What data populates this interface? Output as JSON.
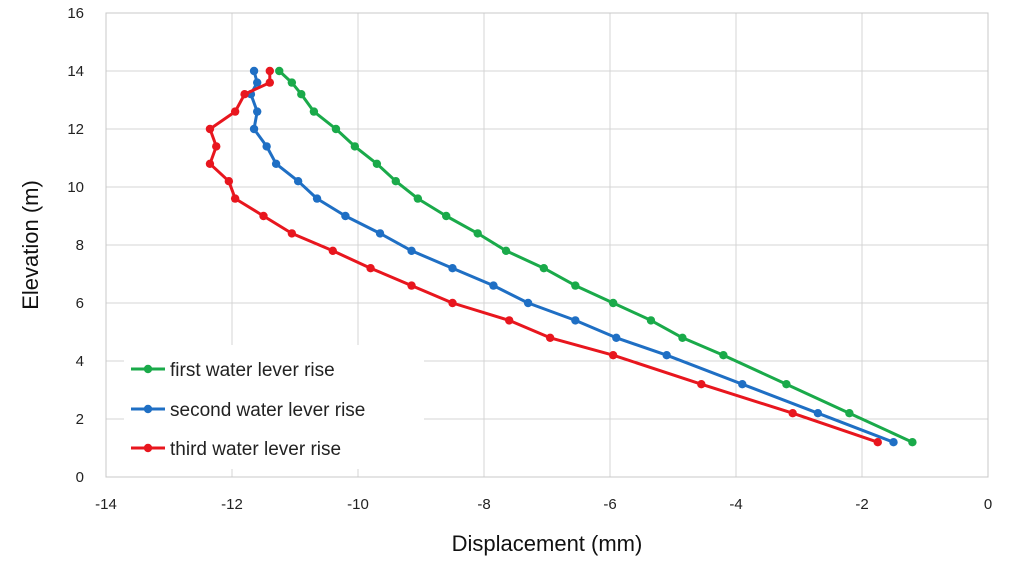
{
  "chart_data": {
    "type": "line",
    "title": "",
    "xlabel": "Displacement (mm)",
    "ylabel": "Elevation (m)",
    "xlim": [
      -14,
      0
    ],
    "ylim": [
      0,
      16
    ],
    "xticks": [
      -14,
      -12,
      -10,
      -8,
      -6,
      -4,
      -2,
      0
    ],
    "yticks": [
      0,
      2,
      4,
      6,
      8,
      10,
      12,
      14,
      16
    ],
    "grid": true,
    "legend_position": "bottom-left",
    "series": [
      {
        "name": "first water lever rise",
        "color": "#1aaa4a",
        "points": [
          [
            -1.2,
            1.2
          ],
          [
            -2.2,
            2.2
          ],
          [
            -3.2,
            3.2
          ],
          [
            -4.2,
            4.2
          ],
          [
            -4.85,
            4.8
          ],
          [
            -5.35,
            5.4
          ],
          [
            -5.95,
            6.0
          ],
          [
            -6.55,
            6.6
          ],
          [
            -7.05,
            7.2
          ],
          [
            -7.65,
            7.8
          ],
          [
            -8.1,
            8.4
          ],
          [
            -8.6,
            9.0
          ],
          [
            -9.05,
            9.6
          ],
          [
            -9.4,
            10.2
          ],
          [
            -9.7,
            10.8
          ],
          [
            -10.05,
            11.4
          ],
          [
            -10.35,
            12.0
          ],
          [
            -10.7,
            12.6
          ],
          [
            -10.9,
            13.2
          ],
          [
            -11.05,
            13.6
          ],
          [
            -11.25,
            14.0
          ]
        ]
      },
      {
        "name": "second water lever rise",
        "color": "#1f6fc4",
        "points": [
          [
            -1.5,
            1.2
          ],
          [
            -2.7,
            2.2
          ],
          [
            -3.9,
            3.2
          ],
          [
            -5.1,
            4.2
          ],
          [
            -5.9,
            4.8
          ],
          [
            -6.55,
            5.4
          ],
          [
            -7.3,
            6.0
          ],
          [
            -7.85,
            6.6
          ],
          [
            -8.5,
            7.2
          ],
          [
            -9.15,
            7.8
          ],
          [
            -9.65,
            8.4
          ],
          [
            -10.2,
            9.0
          ],
          [
            -10.65,
            9.6
          ],
          [
            -10.95,
            10.2
          ],
          [
            -11.3,
            10.8
          ],
          [
            -11.45,
            11.4
          ],
          [
            -11.65,
            12.0
          ],
          [
            -11.6,
            12.6
          ],
          [
            -11.7,
            13.2
          ],
          [
            -11.6,
            13.6
          ],
          [
            -11.65,
            14.0
          ]
        ]
      },
      {
        "name": "third water lever rise",
        "color": "#e8161e",
        "points": [
          [
            -1.75,
            1.2
          ],
          [
            -3.1,
            2.2
          ],
          [
            -4.55,
            3.2
          ],
          [
            -5.95,
            4.2
          ],
          [
            -6.95,
            4.8
          ],
          [
            -7.6,
            5.4
          ],
          [
            -8.5,
            6.0
          ],
          [
            -9.15,
            6.6
          ],
          [
            -9.8,
            7.2
          ],
          [
            -10.4,
            7.8
          ],
          [
            -11.05,
            8.4
          ],
          [
            -11.5,
            9.0
          ],
          [
            -11.95,
            9.6
          ],
          [
            -12.05,
            10.2
          ],
          [
            -12.35,
            10.8
          ],
          [
            -12.25,
            11.4
          ],
          [
            -12.35,
            12.0
          ],
          [
            -11.95,
            12.6
          ],
          [
            -11.8,
            13.2
          ],
          [
            -11.4,
            13.6
          ],
          [
            -11.4,
            14.0
          ]
        ]
      }
    ]
  }
}
